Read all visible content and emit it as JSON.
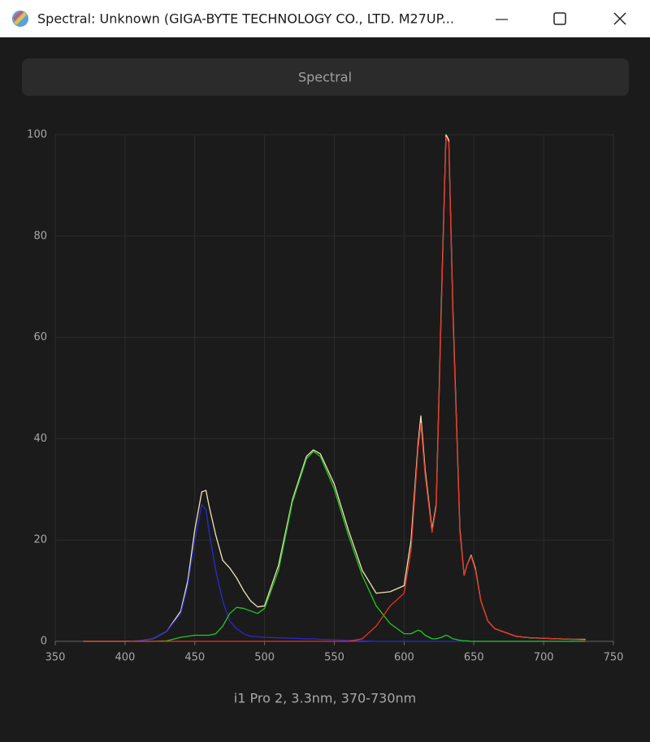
{
  "window": {
    "title": "Spectral: Unknown (GIGA-BYTE TECHNOLOGY CO., LTD. M27UP..."
  },
  "toolbar": {
    "button": "Spectral"
  },
  "chart_data": {
    "type": "line",
    "xlabel": "i1 Pro 2, 3.3nm, 370-730nm",
    "x": [
      370,
      380,
      390,
      400,
      410,
      420,
      430,
      440,
      445,
      450,
      455,
      458,
      460,
      465,
      470,
      475,
      480,
      485,
      490,
      495,
      500,
      510,
      520,
      530,
      535,
      540,
      550,
      560,
      570,
      580,
      590,
      600,
      605,
      610,
      612,
      615,
      620,
      623,
      627,
      630,
      632,
      635,
      640,
      643,
      645,
      648,
      651,
      655,
      660,
      665,
      670,
      680,
      690,
      700,
      710,
      720,
      730
    ],
    "xlim": [
      350,
      750
    ],
    "xticks": [
      350,
      400,
      450,
      500,
      550,
      600,
      650,
      700,
      750
    ],
    "ylim": [
      0,
      100
    ],
    "yticks": [
      0,
      20,
      40,
      60,
      80,
      100
    ],
    "grid": true,
    "series": [
      {
        "color": "#efe6b4",
        "values": [
          0,
          0,
          0,
          0,
          0.1,
          0.5,
          2,
          6,
          12,
          22,
          29.5,
          29.8,
          27,
          21,
          16,
          14.5,
          12.5,
          10,
          8,
          6.8,
          7,
          15,
          28,
          36.5,
          37.8,
          37,
          31,
          22,
          14,
          9.5,
          9.8,
          11,
          20,
          39,
          44.5,
          34,
          22,
          27,
          70,
          100,
          99,
          65,
          22,
          13,
          15,
          17,
          14.5,
          8,
          4,
          2.5,
          2,
          1,
          0.7,
          0.6,
          0.5,
          0.4,
          0.4
        ]
      },
      {
        "color": "#2a2ad0",
        "values": [
          0,
          0,
          0,
          0,
          0.1,
          0.5,
          2,
          5.5,
          11,
          20,
          27,
          26,
          22,
          14,
          8,
          4,
          2.5,
          1.5,
          1,
          0.9,
          0.8,
          0.7,
          0.6,
          0.5,
          0.5,
          0.4,
          0.3,
          0.2,
          0.1,
          0,
          0,
          0,
          0,
          0,
          0,
          0,
          0,
          0,
          0,
          0,
          0,
          0,
          0,
          0,
          0,
          0,
          0,
          0,
          0,
          0,
          0,
          0,
          0,
          0,
          0,
          0,
          0
        ]
      },
      {
        "color": "#22c822",
        "values": [
          0,
          0,
          0,
          0,
          0,
          0,
          0.1,
          0.8,
          1,
          1.2,
          1.2,
          1.2,
          1.2,
          1.5,
          3,
          5.5,
          6.7,
          6.5,
          6,
          5.5,
          6.5,
          14,
          27.5,
          36,
          37.5,
          36.5,
          30,
          21,
          13,
          7,
          3.5,
          1.5,
          1.5,
          2.2,
          2,
          1.2,
          0.5,
          0.5,
          0.8,
          1.2,
          1,
          0.5,
          0.2,
          0.1,
          0.1,
          0,
          0,
          0,
          0,
          0,
          0,
          0,
          0,
          0,
          0,
          0,
          0
        ]
      },
      {
        "color": "#e83222",
        "values": [
          0,
          0,
          0,
          0,
          0,
          0,
          0,
          0,
          0,
          0,
          0,
          0,
          0,
          0,
          0,
          0,
          0,
          0,
          0,
          0,
          0,
          0,
          0,
          0,
          0,
          0,
          0,
          0,
          0.5,
          3,
          7,
          9.5,
          18,
          38,
          43,
          33,
          21.5,
          26.5,
          69,
          99.5,
          98.5,
          64,
          21.5,
          13,
          15,
          16.8,
          14.2,
          8,
          4,
          2.5,
          2,
          1,
          0.7,
          0.6,
          0.5,
          0.4,
          0.3
        ]
      }
    ]
  }
}
